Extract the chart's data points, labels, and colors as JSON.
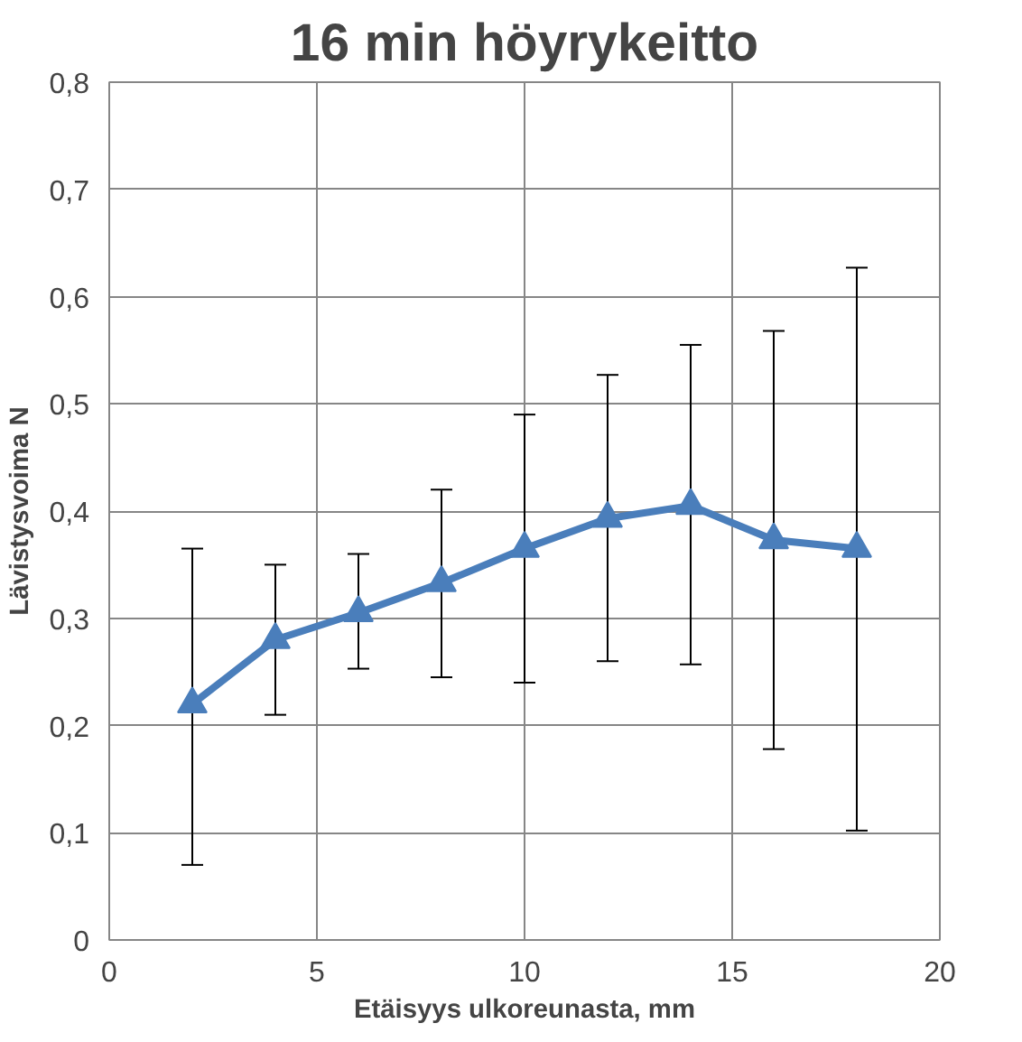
{
  "chart_data": {
    "type": "line",
    "title": "16 min höyrykeitto",
    "xlabel": "Etäisyys ulkoreunasta, mm",
    "ylabel": "Lävistysvoima N",
    "x": [
      2,
      4,
      6,
      8,
      10,
      12,
      14,
      16,
      18
    ],
    "series": [
      {
        "color": "#4a7ebb",
        "values": [
          0.22,
          0.28,
          0.305,
          0.333,
          0.365,
          0.393,
          0.405,
          0.373,
          0.365
        ],
        "errors": [
          [
            0.07,
            0.365
          ],
          [
            0.21,
            0.35
          ],
          [
            0.253,
            0.36
          ],
          [
            0.245,
            0.42
          ],
          [
            0.24,
            0.49
          ],
          [
            0.26,
            0.527
          ],
          [
            0.257,
            0.555
          ],
          [
            0.178,
            0.568
          ],
          [
            0.102,
            0.627
          ]
        ]
      }
    ],
    "xlim": [
      0,
      20
    ],
    "xticks": [
      0,
      5,
      10,
      15,
      20
    ],
    "ylim": [
      0,
      0.8
    ],
    "yticks": [
      0,
      {
        "value": 0.1,
        "label": "0,1"
      },
      {
        "value": 0.2,
        "label": "0,2"
      },
      {
        "value": 0.3,
        "label": "0,3"
      },
      {
        "value": 0.4,
        "label": "0,4"
      },
      {
        "value": 0.5,
        "label": "0,5"
      },
      {
        "value": 0.6,
        "label": "0,6"
      },
      {
        "value": 0.7,
        "label": "0,7"
      },
      {
        "value": 0.8,
        "label": "0,8"
      }
    ],
    "grid": true,
    "marker": "triangle",
    "line_style": "solid"
  }
}
